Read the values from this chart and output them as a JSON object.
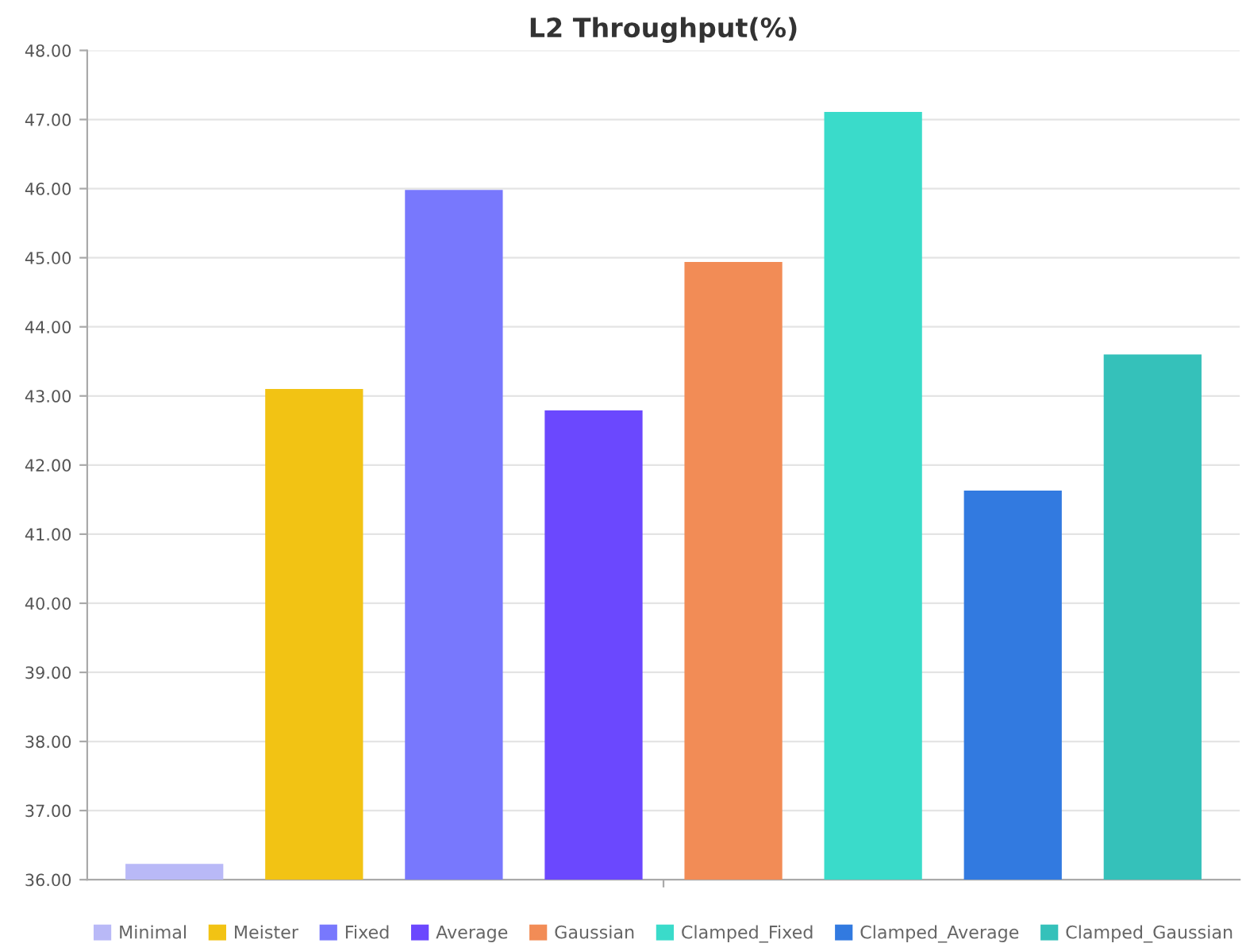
{
  "chart_data": {
    "type": "bar",
    "title": "L2 Throughput(%)",
    "categories": [
      null
    ],
    "series": [
      {
        "name": "Minimal",
        "color": "#b9b9f7",
        "values": [
          36.23
        ]
      },
      {
        "name": "Meister",
        "color": "#f2c314",
        "values": [
          43.1
        ]
      },
      {
        "name": "Fixed",
        "color": "#7878fd",
        "values": [
          45.98
        ]
      },
      {
        "name": "Average",
        "color": "#6b48fe",
        "values": [
          42.79
        ]
      },
      {
        "name": "Gaussian",
        "color": "#f28c56",
        "values": [
          44.94
        ]
      },
      {
        "name": "Clamped_Fixed",
        "color": "#3adbca",
        "values": [
          47.11
        ]
      },
      {
        "name": "Clamped_Average",
        "color": "#327ae0",
        "values": [
          41.63
        ]
      },
      {
        "name": "Clamped_Gaussian",
        "color": "#35c1ba",
        "values": [
          43.6
        ]
      }
    ],
    "ylim": [
      36,
      48
    ],
    "yticks": [
      {
        "value": 36,
        "label": "36.00"
      },
      {
        "value": 37,
        "label": "37.00"
      },
      {
        "value": 38,
        "label": "38.00"
      },
      {
        "value": 39,
        "label": "39.00"
      },
      {
        "value": 40,
        "label": "40.00"
      },
      {
        "value": 41,
        "label": "41.00"
      },
      {
        "value": 42,
        "label": "42.00"
      },
      {
        "value": 43,
        "label": "43.00"
      },
      {
        "value": 44,
        "label": "44.00"
      },
      {
        "value": 45,
        "label": "45.00"
      },
      {
        "value": 46,
        "label": "46.00"
      },
      {
        "value": 47,
        "label": "47.00"
      },
      {
        "value": 48,
        "label": "48.00"
      }
    ],
    "grid": "y",
    "legend": "bottom"
  }
}
